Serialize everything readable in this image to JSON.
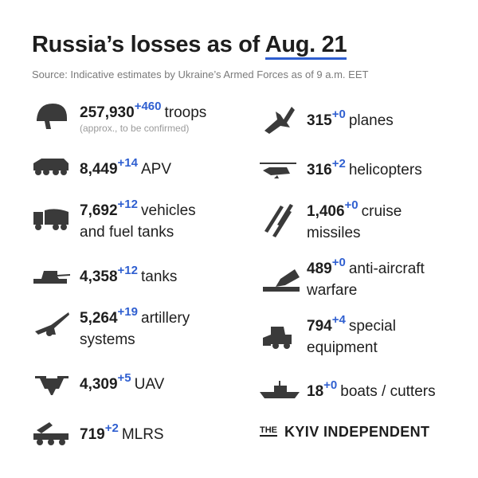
{
  "header": {
    "title": "Russia’s losses as of ",
    "date": "Aug. 21",
    "source": "Source: Indicative estimates by Ukraine’s Armed Forces as of 9 a.m. EET"
  },
  "left": [
    {
      "value": "257,930",
      "delta": "+460",
      "label": "troops",
      "note": "(approx., to be confirmed)"
    },
    {
      "value": "8,449",
      "delta": "+14",
      "label": "APV"
    },
    {
      "value": "7,692",
      "delta": "+12",
      "label": "vehicles",
      "label2": "and fuel tanks"
    },
    {
      "value": "4,358",
      "delta": "+12",
      "label": "tanks"
    },
    {
      "value": "5,264",
      "delta": "+19",
      "label": "artillery",
      "label2": "systems"
    },
    {
      "value": "4,309",
      "delta": "+5",
      "label": "UAV"
    },
    {
      "value": "719",
      "delta": "+2",
      "label": "MLRS"
    }
  ],
  "right": [
    {
      "value": "315",
      "delta": "+0",
      "label": "planes"
    },
    {
      "value": "316",
      "delta": "+2",
      "label": "helicopters"
    },
    {
      "value": "1,406",
      "delta": "+0",
      "label": "cruise",
      "label2": "missiles"
    },
    {
      "value": "489",
      "delta": "+0",
      "label": "anti-aircraft",
      "label2": "warfare"
    },
    {
      "value": "794",
      "delta": "+4",
      "label": "special",
      "label2": "equipment"
    },
    {
      "value": "18",
      "delta": "+0",
      "label": "boats / cutters"
    }
  ],
  "logo": {
    "the": "THE",
    "name": "KYIV INDEPENDENT"
  }
}
